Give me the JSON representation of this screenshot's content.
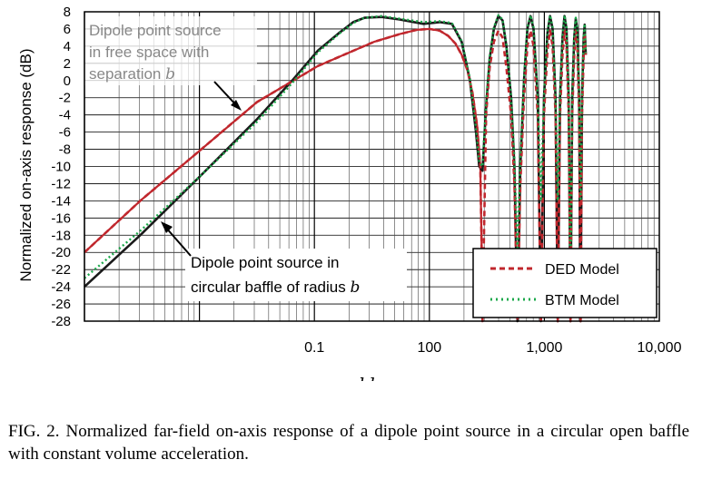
{
  "caption": "FIG. 2. Normalized far-field on-axis response of a dipole point source in a circular open baffle with constant volume acceleration.",
  "chart_data": {
    "type": "line",
    "xlabel": "kb",
    "ylabel": "Normalized on-axis response (dB)",
    "x_scale": "log",
    "xlim": [
      0.1,
      10000
    ],
    "ylim": [
      -28,
      8
    ],
    "x_tick_labels": [
      "0.1",
      "100",
      "1,000",
      "10,000"
    ],
    "y_ticks": [
      8,
      6,
      4,
      2,
      0,
      -2,
      -4,
      -6,
      -8,
      -10,
      -12,
      -14,
      -16,
      -18,
      -20,
      -22,
      -24,
      -26,
      -28
    ],
    "grid": true,
    "legend": {
      "position": "bottom-right",
      "entries": [
        {
          "label": "DED Model",
          "color": "#c0272d",
          "style": "dashed"
        },
        {
          "label": "BTM Model",
          "color": "#1aa84a",
          "style": "dotted"
        }
      ]
    },
    "annotations": [
      {
        "lines": [
          "Dipole point source",
          "in free space with",
          "separation "
        ],
        "italic_suffix": "b"
      },
      {
        "lines": [
          "Dipole point source in",
          "circular baffle of radius "
        ],
        "italic_suffix": "b"
      }
    ],
    "series": [
      {
        "name": "Dipole point source in free space",
        "color": "#c0272d",
        "points": [
          [
            0.1,
            -20
          ],
          [
            0.3,
            -14
          ],
          [
            1,
            -8
          ],
          [
            3,
            -2.5
          ],
          [
            10,
            1.7
          ],
          [
            30,
            4.5
          ],
          [
            50,
            5.4
          ],
          [
            70,
            5.9
          ],
          [
            90,
            6.0
          ],
          [
            110,
            5.8
          ],
          [
            130,
            5.2
          ],
          [
            150,
            4.3
          ],
          [
            170,
            3.0
          ],
          [
            190,
            1.2
          ],
          [
            210,
            -1.4
          ],
          [
            230,
            -5.2
          ],
          [
            245,
            -10
          ],
          [
            252,
            -20
          ],
          [
            256,
            -28
          ]
        ]
      },
      {
        "name": "Dipole point source in circular baffle",
        "color": "#1a1a1a",
        "points": [
          [
            0.1,
            -24
          ],
          [
            0.3,
            -18
          ],
          [
            1,
            -11
          ],
          [
            3,
            -4.5
          ],
          [
            6,
            0
          ],
          [
            10,
            3.5
          ],
          [
            15,
            5.5
          ],
          [
            20,
            6.8
          ],
          [
            25,
            7.3
          ],
          [
            35,
            7.4
          ],
          [
            50,
            7.1
          ],
          [
            80,
            6.6
          ],
          [
            110,
            6.8
          ],
          [
            140,
            6.6
          ],
          [
            170,
            4.5
          ],
          [
            200,
            0
          ],
          [
            225,
            -6
          ],
          [
            240,
            -10
          ],
          [
            256,
            -10.5
          ],
          [
            275,
            -3
          ],
          [
            295,
            2.5
          ],
          [
            320,
            6
          ],
          [
            350,
            7.5
          ],
          [
            380,
            7
          ],
          [
            410,
            4
          ],
          [
            450,
            -2
          ],
          [
            480,
            -10
          ],
          [
            510,
            -28
          ],
          [
            540,
            -10
          ],
          [
            580,
            0
          ],
          [
            620,
            6
          ],
          [
            660,
            7.5
          ],
          [
            700,
            6
          ],
          [
            760,
            -2
          ],
          [
            810,
            -28
          ],
          [
            860,
            -2
          ],
          [
            920,
            5.5
          ],
          [
            970,
            7.5
          ],
          [
            1020,
            6
          ],
          [
            1080,
            -2
          ],
          [
            1130,
            -28
          ],
          [
            1180,
            -2
          ],
          [
            1240,
            5
          ],
          [
            1290,
            7.5
          ],
          [
            1340,
            6
          ],
          [
            1400,
            -2
          ],
          [
            1450,
            -28
          ],
          [
            1500,
            -2
          ],
          [
            1560,
            5
          ],
          [
            1610,
            7.2
          ],
          [
            1660,
            6
          ],
          [
            1720,
            -2
          ],
          [
            1770,
            -28
          ],
          [
            1820,
            -2
          ],
          [
            1880,
            5
          ],
          [
            1920,
            6.5
          ],
          [
            1960,
            3
          ]
        ]
      },
      {
        "name": "DED Model",
        "color": "#c0272d",
        "style": "dashed",
        "points": [
          [
            0.1,
            -20
          ],
          [
            0.3,
            -14
          ],
          [
            1,
            -8
          ],
          [
            3,
            -2.5
          ],
          [
            10,
            1.7
          ],
          [
            30,
            4.5
          ],
          [
            50,
            5.4
          ],
          [
            70,
            5.9
          ],
          [
            90,
            6.0
          ],
          [
            110,
            5.8
          ],
          [
            130,
            5.2
          ],
          [
            150,
            4.3
          ],
          [
            170,
            3.0
          ],
          [
            190,
            1.2
          ],
          [
            210,
            -1.4
          ],
          [
            230,
            -5.2
          ],
          [
            245,
            -10
          ],
          [
            252,
            -20
          ],
          [
            256,
            -28
          ],
          [
            262,
            -20
          ],
          [
            275,
            -4
          ],
          [
            295,
            1.5
          ],
          [
            320,
            4.5
          ],
          [
            350,
            5.8
          ],
          [
            380,
            5
          ],
          [
            410,
            1.5
          ],
          [
            450,
            -4
          ],
          [
            480,
            -12
          ],
          [
            510,
            -28
          ],
          [
            540,
            -12
          ],
          [
            580,
            -2
          ],
          [
            620,
            4
          ],
          [
            660,
            5.8
          ],
          [
            700,
            4
          ],
          [
            760,
            -4
          ],
          [
            810,
            -28
          ],
          [
            860,
            -4
          ],
          [
            920,
            3.5
          ],
          [
            970,
            5.8
          ],
          [
            1020,
            4
          ],
          [
            1080,
            -4
          ],
          [
            1130,
            -28
          ],
          [
            1180,
            -4
          ],
          [
            1240,
            3
          ],
          [
            1290,
            5.8
          ],
          [
            1340,
            4
          ],
          [
            1400,
            -4
          ],
          [
            1450,
            -28
          ],
          [
            1500,
            -4
          ],
          [
            1560,
            3
          ],
          [
            1610,
            5.8
          ],
          [
            1660,
            4
          ],
          [
            1720,
            -4
          ],
          [
            1770,
            -28
          ],
          [
            1820,
            -4
          ],
          [
            1880,
            3
          ],
          [
            1920,
            5.5
          ],
          [
            1960,
            3
          ]
        ]
      },
      {
        "name": "BTM Model",
        "color": "#1aa84a",
        "style": "dotted",
        "points": [
          [
            0.1,
            -23
          ],
          [
            0.3,
            -17.5
          ],
          [
            1,
            -11
          ],
          [
            3,
            -4.8
          ],
          [
            6,
            -0.3
          ],
          [
            10,
            3.3
          ],
          [
            15,
            5.4
          ],
          [
            20,
            6.7
          ],
          [
            25,
            7.3
          ],
          [
            35,
            7.5
          ],
          [
            50,
            7.2
          ],
          [
            80,
            6.8
          ],
          [
            110,
            6.9
          ],
          [
            140,
            6.7
          ],
          [
            170,
            4.6
          ],
          [
            200,
            0.2
          ],
          [
            225,
            -5.5
          ],
          [
            240,
            -9.5
          ],
          [
            256,
            -10
          ],
          [
            275,
            -2.5
          ],
          [
            295,
            2.8
          ],
          [
            320,
            6.2
          ],
          [
            350,
            7.6
          ],
          [
            380,
            7.1
          ],
          [
            410,
            4.2
          ],
          [
            450,
            -1.8
          ],
          [
            480,
            -9
          ],
          [
            510,
            -20
          ],
          [
            540,
            -9
          ],
          [
            580,
            0.3
          ],
          [
            620,
            6.2
          ],
          [
            660,
            7.6
          ],
          [
            700,
            6.2
          ],
          [
            760,
            -1.8
          ],
          [
            810,
            -14
          ],
          [
            860,
            -1.8
          ],
          [
            920,
            5.7
          ],
          [
            970,
            7.6
          ],
          [
            1020,
            6.2
          ],
          [
            1080,
            -1.8
          ],
          [
            1130,
            -14
          ],
          [
            1180,
            -1.8
          ],
          [
            1240,
            5.2
          ],
          [
            1290,
            7.6
          ],
          [
            1340,
            6.2
          ],
          [
            1400,
            -1.8
          ],
          [
            1450,
            -26
          ],
          [
            1500,
            -1.8
          ],
          [
            1560,
            5.2
          ],
          [
            1610,
            7.3
          ],
          [
            1660,
            6.2
          ],
          [
            1720,
            -1.8
          ],
          [
            1770,
            -14
          ],
          [
            1820,
            -1.8
          ],
          [
            1880,
            5.2
          ],
          [
            1920,
            6.6
          ],
          [
            1960,
            3.2
          ]
        ]
      }
    ]
  }
}
